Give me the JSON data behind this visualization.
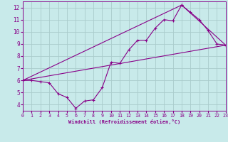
{
  "xlabel": "Windchill (Refroidissement éolien,°C)",
  "xlim": [
    0,
    23
  ],
  "ylim": [
    3.5,
    12.5
  ],
  "xticks": [
    0,
    1,
    2,
    3,
    4,
    5,
    6,
    7,
    8,
    9,
    10,
    11,
    12,
    13,
    14,
    15,
    16,
    17,
    18,
    19,
    20,
    21,
    22,
    23
  ],
  "yticks": [
    4,
    5,
    6,
    7,
    8,
    9,
    10,
    11,
    12
  ],
  "bg_color": "#c8eaea",
  "line_color": "#880088",
  "grid_color": "#aacccc",
  "line1_x": [
    0,
    1,
    2,
    3,
    4,
    5,
    6,
    7,
    8,
    9,
    10,
    11,
    12,
    13,
    14,
    15,
    16,
    17,
    18,
    19,
    20,
    21,
    22,
    23
  ],
  "line1_y": [
    6.0,
    6.0,
    5.9,
    5.8,
    4.9,
    4.6,
    3.7,
    4.3,
    4.4,
    5.4,
    7.5,
    7.4,
    8.5,
    9.3,
    9.3,
    10.3,
    11.0,
    10.9,
    12.2,
    11.6,
    11.0,
    10.1,
    9.0,
    8.9
  ],
  "line2_x": [
    0,
    23
  ],
  "line2_y": [
    6.0,
    8.9
  ],
  "line3_x": [
    0,
    18,
    23
  ],
  "line3_y": [
    6.0,
    12.2,
    8.9
  ]
}
